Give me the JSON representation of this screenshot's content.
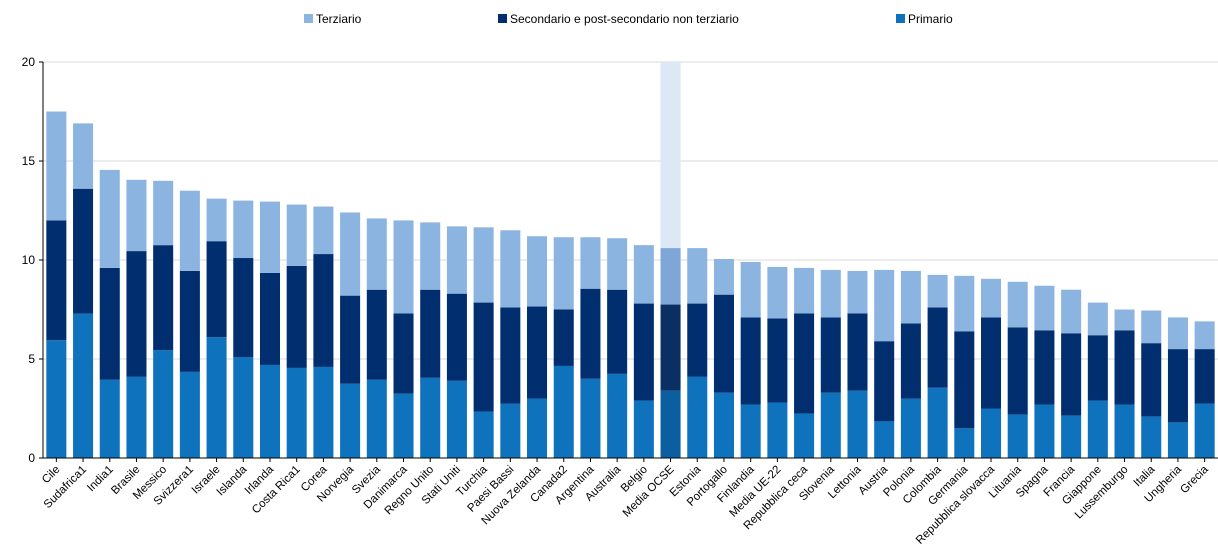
{
  "chart_data": {
    "type": "bar",
    "stacked": true,
    "categories": [
      "Cile",
      "Sudafrica1",
      "India1",
      "Brasile",
      "Messico",
      "Svizzera1",
      "Israele",
      "Islanda",
      "Irlanda",
      "Costa Rica1",
      "Corea",
      "Norvegia",
      "Svezia",
      "Danimarca",
      "Regno Unito",
      "Stati Uniti",
      "Turchia",
      "Paesi Bassi",
      "Nuova Zelanda",
      "Canada2",
      "Argentina",
      "Australia",
      "Belgio",
      "Media OCSE",
      "Estonia",
      "Portogallo",
      "Finlandia",
      "Media UE-22",
      "Repubblica ceca",
      "Slovenia",
      "Lettonia",
      "Austria",
      "Polonia",
      "Colombia",
      "Germania",
      "Repubblica slovacca",
      "Lituania",
      "Spagna",
      "Francia",
      "Giappone",
      "Lussemburgo",
      "Italia",
      "Ungheria",
      "Grecia"
    ],
    "series": [
      {
        "name": "Primario",
        "color": "#0f72bd",
        "values": [
          5.95,
          7.3,
          3.95,
          4.1,
          5.45,
          4.35,
          6.1,
          5.1,
          4.7,
          4.55,
          4.6,
          3.75,
          3.95,
          3.25,
          4.05,
          3.9,
          2.35,
          2.75,
          3.0,
          4.65,
          4.0,
          4.25,
          2.9,
          3.4,
          4.1,
          3.3,
          2.7,
          2.8,
          2.25,
          3.3,
          3.4,
          1.85,
          3.0,
          3.55,
          1.5,
          2.5,
          2.2,
          2.7,
          2.15,
          2.9,
          2.7,
          2.1,
          1.8,
          2.75
        ]
      },
      {
        "name": "Secondario e post-secondario non terziario",
        "color": "#002e6e",
        "values": [
          6.05,
          6.3,
          5.65,
          6.35,
          5.3,
          5.1,
          4.85,
          5.0,
          4.65,
          5.15,
          5.7,
          4.45,
          4.55,
          4.05,
          4.45,
          4.4,
          5.5,
          4.85,
          4.65,
          2.85,
          4.55,
          4.25,
          4.9,
          4.35,
          3.7,
          4.95,
          4.4,
          4.25,
          5.05,
          3.8,
          3.9,
          4.05,
          3.8,
          4.05,
          4.9,
          4.6,
          4.4,
          3.75,
          4.15,
          3.3,
          3.75,
          3.7,
          3.7,
          2.75
        ]
      },
      {
        "name": "Terziario",
        "color": "#8cb4e0",
        "values": [
          5.5,
          3.3,
          4.95,
          3.6,
          3.25,
          4.05,
          2.15,
          2.9,
          3.6,
          3.1,
          2.4,
          4.2,
          3.6,
          4.7,
          3.4,
          3.4,
          3.8,
          3.9,
          3.55,
          3.65,
          2.6,
          2.6,
          2.95,
          2.85,
          2.8,
          1.8,
          2.8,
          2.6,
          2.3,
          2.4,
          2.15,
          3.6,
          2.65,
          1.65,
          2.8,
          1.95,
          2.3,
          2.25,
          2.2,
          1.65,
          1.05,
          1.65,
          1.6,
          1.4
        ]
      }
    ],
    "highlight_category": "Media OCSE",
    "highlight_colors": {
      "Primario": "#0b5fa0",
      "Secondario e post-secondario non terziario": "#0a2f63",
      "Terziario": "#7ea6d6",
      "band": "#dce8f5"
    },
    "ylim": [
      0,
      20
    ],
    "yticks": [
      0,
      5,
      10,
      15,
      20
    ],
    "grid": true,
    "legend_position": "top",
    "legend": [
      {
        "label": "Terziario",
        "color": "#8cb4e0"
      },
      {
        "label": "Secondario e post-secondario non terziario",
        "color": "#002e6e"
      },
      {
        "label": "Primario",
        "color": "#0f72bd"
      }
    ]
  }
}
